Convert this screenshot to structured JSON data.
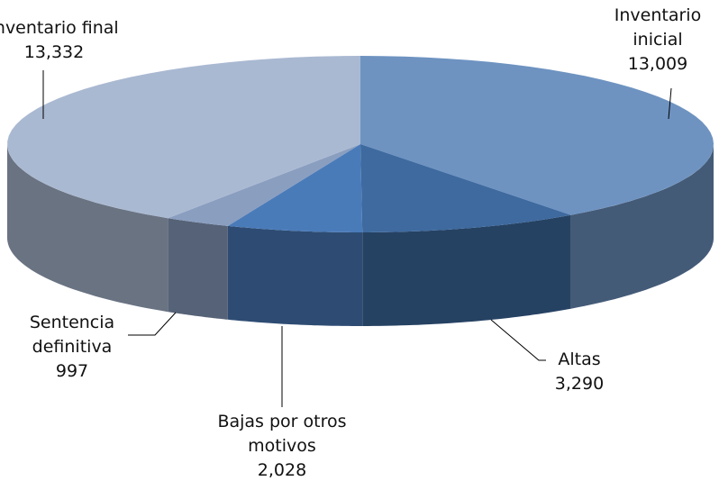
{
  "chart_data": {
    "type": "pie3d",
    "categories": [
      "Inventario inicial",
      "Altas",
      "Bajas por otros motivos",
      "Sentencia definitiva",
      "Inventario final"
    ],
    "values": [
      13009,
      3290,
      2028,
      997,
      13332
    ],
    "value_labels": [
      "13,009",
      "3,290",
      "2,028",
      "997",
      "13,332"
    ],
    "colors": [
      "#6e93c1",
      "#3e6a9f",
      "#4a7bb9",
      "#8a9ec0",
      "#aab9d2"
    ]
  }
}
